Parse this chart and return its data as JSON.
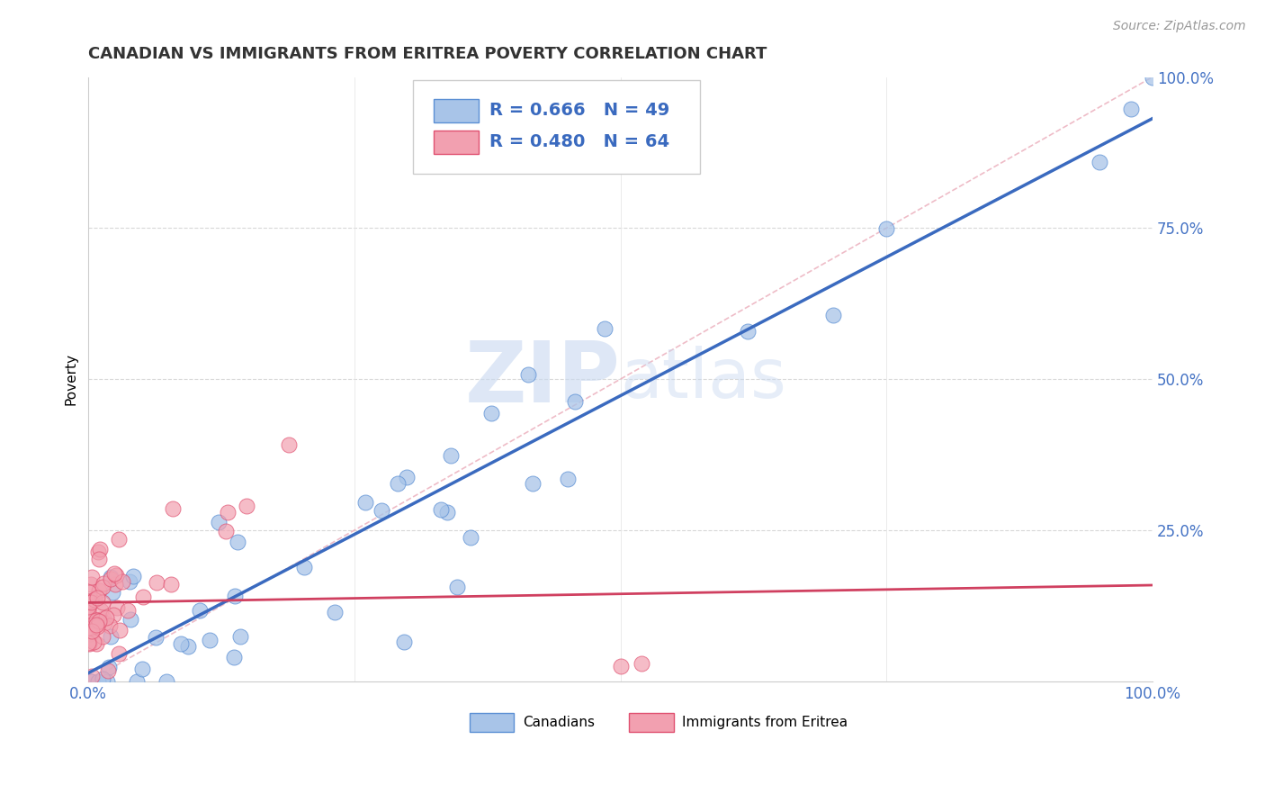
{
  "title": "CANADIAN VS IMMIGRANTS FROM ERITREA POVERTY CORRELATION CHART",
  "source": "Source: ZipAtlas.com",
  "ylabel": "Poverty",
  "watermark": "ZIPatlas",
  "xlim": [
    0,
    1
  ],
  "ylim": [
    0,
    1
  ],
  "canadians_color": "#a8c4e8",
  "canadians_edge_color": "#5b8fd4",
  "eritrea_color": "#f2a0b0",
  "eritrea_edge_color": "#e05070",
  "canadians_line_color": "#3a6abf",
  "eritrea_line_color": "#d04060",
  "legend_text_color": "#3a6abf",
  "R_canadian": 0.666,
  "N_canadian": 49,
  "R_eritrea": 0.48,
  "N_eritrea": 64,
  "background_color": "#ffffff",
  "grid_color": "#cccccc",
  "title_fontsize": 13,
  "axis_label_fontsize": 11,
  "tick_label_color": "#4472c4"
}
